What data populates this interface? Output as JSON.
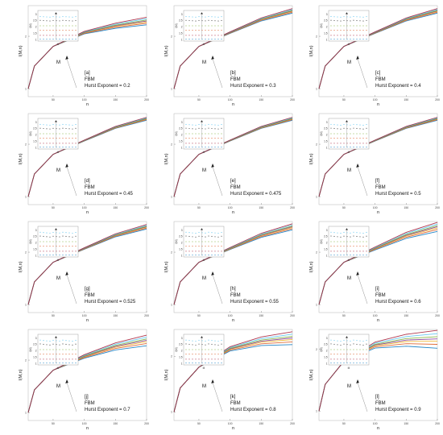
{
  "figure": {
    "xlabel": "n",
    "ylabel": "l(M,n)",
    "marker_label": "M",
    "inset_xlabel": "M",
    "inset_ylabel": "l(M)",
    "series_colors": [
      "#0072BD",
      "#D95319",
      "#EDB120",
      "#7E2F8E",
      "#77AC30",
      "#4DBEEE",
      "#A2142F"
    ],
    "dot_colors": [
      "#0072BD",
      "#A2142F",
      "#D95319",
      "#77AC30",
      "#333333",
      "#4DBEEE",
      "#7E2F8E"
    ]
  },
  "chart_data": [
    {
      "type": "line",
      "panel": "[a]",
      "model": "FBM",
      "hurst_label": "Hurst Exponent = 0.2",
      "x": [
        10,
        20,
        50,
        100,
        150,
        200
      ],
      "xticks": [
        50,
        100,
        150,
        200
      ],
      "yticks": [
        1,
        2
      ],
      "ylim": [
        0.9,
        3.0
      ],
      "y_base": [
        1.0,
        1.35,
        1.75,
        2.1,
        2.3,
        2.45
      ],
      "spread": 0.05,
      "inset_yticks": [
        1,
        1.5,
        2,
        2.5,
        3
      ],
      "inset_ylim": [
        0.9,
        3.3
      ]
    },
    {
      "type": "line",
      "panel": "[b]",
      "model": "FBM",
      "hurst_label": "Hurst Exponent = 0.3",
      "x": [
        10,
        20,
        50,
        100,
        150,
        200
      ],
      "xticks": [
        50,
        100,
        150,
        200
      ],
      "yticks": [
        1,
        2
      ],
      "ylim": [
        0.9,
        3.0
      ],
      "y_base": [
        1.0,
        1.35,
        1.75,
        2.1,
        2.5,
        2.8
      ],
      "spread": 0.03,
      "inset_yticks": [
        1,
        1.5,
        2,
        2.5,
        3
      ],
      "inset_ylim": [
        0.9,
        3.3
      ]
    },
    {
      "type": "line",
      "panel": "[c]",
      "model": "FBM",
      "hurst_label": "Hurst Exponent = 0.4",
      "x": [
        10,
        20,
        50,
        100,
        150,
        200
      ],
      "xticks": [
        50,
        100,
        150,
        200
      ],
      "yticks": [
        1,
        2
      ],
      "ylim": [
        0.9,
        3.0
      ],
      "y_base": [
        1.0,
        1.35,
        1.75,
        2.1,
        2.5,
        2.8
      ],
      "spread": 0.03,
      "inset_yticks": [
        1,
        1.5,
        2,
        2.5,
        3
      ],
      "inset_ylim": [
        0.9,
        3.3
      ]
    },
    {
      "type": "line",
      "panel": "[d]",
      "model": "FBM",
      "hurst_label": "Hurst Exponent = 0.45",
      "x": [
        10,
        20,
        50,
        100,
        150,
        200
      ],
      "xticks": [
        50,
        100,
        150,
        200
      ],
      "yticks": [
        1,
        2
      ],
      "ylim": [
        0.9,
        3.0
      ],
      "y_base": [
        1.0,
        1.35,
        1.75,
        2.1,
        2.5,
        2.8
      ],
      "spread": 0.02,
      "inset_yticks": [
        1,
        1.5,
        2,
        2.5,
        3
      ],
      "inset_ylim": [
        0.9,
        3.3
      ]
    },
    {
      "type": "line",
      "panel": "[e]",
      "model": "FBM",
      "hurst_label": "Hurst Exponent = 0.475",
      "x": [
        10,
        20,
        50,
        100,
        150,
        200
      ],
      "xticks": [
        50,
        100,
        150,
        200
      ],
      "yticks": [
        1,
        2
      ],
      "ylim": [
        0.9,
        3.0
      ],
      "y_base": [
        1.0,
        1.35,
        1.75,
        2.1,
        2.5,
        2.8
      ],
      "spread": 0.02,
      "inset_yticks": [
        1,
        1.5,
        2,
        2.5,
        3
      ],
      "inset_ylim": [
        0.9,
        3.3
      ]
    },
    {
      "type": "line",
      "panel": "[f]",
      "model": "FBM",
      "hurst_label": "Hurst Exponent = 0.5",
      "x": [
        10,
        20,
        50,
        100,
        150,
        200
      ],
      "xticks": [
        50,
        100,
        150,
        200
      ],
      "yticks": [
        1,
        2
      ],
      "ylim": [
        0.9,
        3.0
      ],
      "y_base": [
        1.0,
        1.35,
        1.75,
        2.1,
        2.5,
        2.8
      ],
      "spread": 0.02,
      "inset_yticks": [
        1,
        1.5,
        2,
        2.5,
        3
      ],
      "inset_ylim": [
        0.9,
        3.3
      ]
    },
    {
      "type": "line",
      "panel": "[g]",
      "model": "FBM",
      "hurst_label": "Hurst Exponent = 0.525",
      "x": [
        10,
        20,
        50,
        100,
        150,
        200
      ],
      "xticks": [
        50,
        100,
        150,
        200
      ],
      "yticks": [
        1,
        2
      ],
      "ylim": [
        0.9,
        3.0
      ],
      "y_base": [
        1.0,
        1.35,
        1.75,
        2.1,
        2.5,
        2.8
      ],
      "spread": 0.03,
      "inset_yticks": [
        1,
        1.5,
        2,
        2.5,
        3
      ],
      "inset_ylim": [
        0.9,
        3.3
      ]
    },
    {
      "type": "line",
      "panel": "[h]",
      "model": "FBM",
      "hurst_label": "Hurst Exponent = 0.55",
      "x": [
        10,
        20,
        50,
        100,
        150,
        200
      ],
      "xticks": [
        50,
        100,
        150,
        200
      ],
      "yticks": [
        1,
        2
      ],
      "ylim": [
        0.9,
        3.0
      ],
      "y_base": [
        1.0,
        1.35,
        1.75,
        2.1,
        2.5,
        2.8
      ],
      "spread": 0.04,
      "inset_yticks": [
        1,
        1.5,
        2,
        2.5,
        3
      ],
      "inset_ylim": [
        0.9,
        3.3
      ]
    },
    {
      "type": "line",
      "panel": "[i]",
      "model": "FBM",
      "hurst_label": "Hurst Exponent = 0.6",
      "x": [
        10,
        20,
        50,
        100,
        150,
        200
      ],
      "xticks": [
        50,
        100,
        150,
        200
      ],
      "yticks": [
        1,
        2
      ],
      "ylim": [
        0.9,
        3.0
      ],
      "y_base": [
        1.0,
        1.35,
        1.75,
        2.1,
        2.5,
        2.8
      ],
      "spread": 0.06,
      "inset_yticks": [
        1,
        1.5,
        2,
        2.5,
        3
      ],
      "inset_ylim": [
        0.9,
        3.3
      ]
    },
    {
      "type": "line",
      "panel": "[j]",
      "model": "FBM",
      "hurst_label": "Hurst Exponent = 0.7",
      "x": [
        10,
        20,
        50,
        100,
        150,
        200
      ],
      "xticks": [
        50,
        100,
        150,
        200
      ],
      "yticks": [
        1,
        2
      ],
      "ylim": [
        0.9,
        3.0
      ],
      "y_base": [
        1.0,
        1.35,
        1.75,
        2.1,
        2.4,
        2.6
      ],
      "spread": 0.07,
      "inset_yticks": [
        1,
        1.5,
        2,
        2.5,
        3
      ],
      "inset_ylim": [
        0.9,
        3.3
      ]
    },
    {
      "type": "line",
      "panel": "[k]",
      "model": "FBM",
      "hurst_label": "Hurst Exponent = 0.8",
      "x": [
        10,
        20,
        50,
        100,
        150,
        200
      ],
      "xticks": [
        50,
        100,
        150,
        200
      ],
      "yticks": [
        1,
        2
      ],
      "ylim": [
        0.9,
        2.8
      ],
      "y_base": [
        1.0,
        1.35,
        1.75,
        2.2,
        2.42,
        2.52
      ],
      "spread": 0.08,
      "inset_yticks": [
        1,
        1.5,
        2,
        2.5,
        3
      ],
      "inset_ylim": [
        0.9,
        3.3
      ]
    },
    {
      "type": "line",
      "panel": "[l]",
      "model": "FBM",
      "hurst_label": "Hurst Exponent = 0.9",
      "x": [
        10,
        20,
        50,
        100,
        150,
        200
      ],
      "xticks": [
        50,
        100,
        150,
        200
      ],
      "yticks": [
        1,
        2
      ],
      "ylim": [
        0.9,
        2.5
      ],
      "y_base": [
        1.0,
        1.35,
        1.75,
        2.1,
        2.22,
        2.25
      ],
      "spread": 0.1,
      "inset_yticks": [
        1,
        1.5,
        2,
        2.5,
        3
      ],
      "inset_ylim": [
        0.9,
        3.3
      ]
    }
  ]
}
